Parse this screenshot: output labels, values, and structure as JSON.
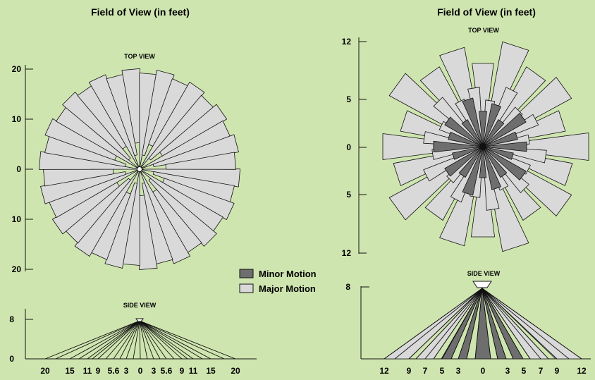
{
  "colors": {
    "background": "#cfe5b0",
    "major": "#d9d9d9",
    "minor": "#6e6e6e",
    "stroke": "#111111"
  },
  "left": {
    "title": "Field of View (in feet)",
    "top_view_label": "TOP VIEW",
    "top_axis_labels": [
      "20",
      "10",
      "0",
      "10",
      "20"
    ],
    "side_view_label": "SIDE VIEW",
    "side_y_labels": [
      "8",
      "0"
    ],
    "side_x_labels": [
      "20",
      "15",
      "11",
      "9",
      "5.6",
      "3",
      "0",
      "3",
      "5.6",
      "9",
      "11",
      "15",
      "20"
    ]
  },
  "right": {
    "title": "Field of View (in feet)",
    "top_view_label": "TOP VIEW",
    "top_axis_labels": [
      "12",
      "5",
      "0",
      "5",
      "12"
    ],
    "side_view_label": "SIDE VIEW",
    "side_y_labels": [
      "8"
    ],
    "side_x_labels": [
      "12",
      "9",
      "7",
      "5",
      "3",
      "0",
      "3",
      "5",
      "7",
      "9",
      "12"
    ]
  },
  "legend": {
    "minor": "Minor Motion",
    "major": "Major Motion"
  }
}
